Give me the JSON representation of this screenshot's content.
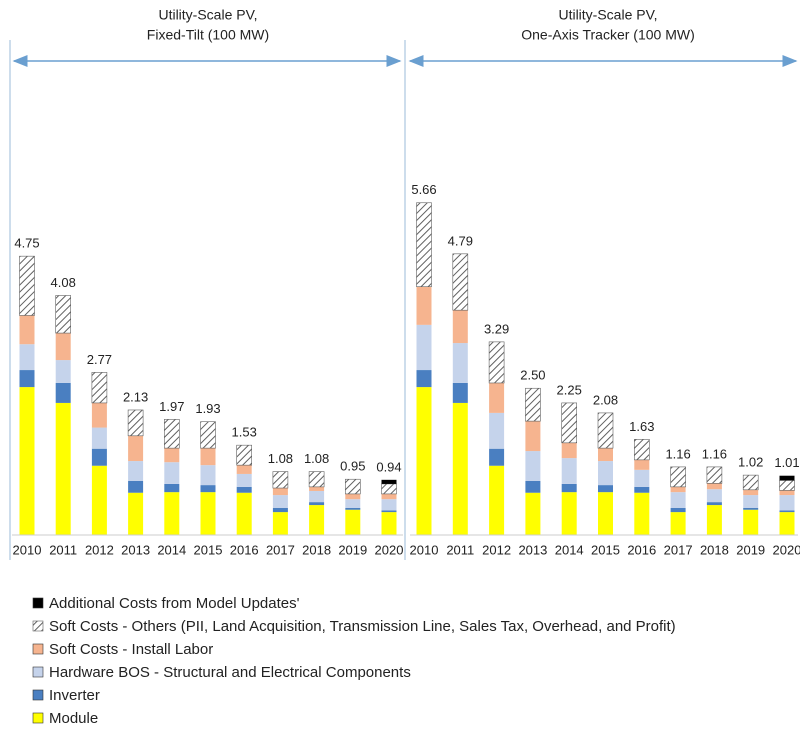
{
  "chart_data": {
    "type": "bar",
    "stacked": true,
    "categories": [
      "2010",
      "2011",
      "2012",
      "2013",
      "2014",
      "2015",
      "2016",
      "2017",
      "2018",
      "2019",
      "2020"
    ],
    "panels": [
      {
        "title": [
          "Utility-Scale PV,",
          "Fixed-Tilt (100 MW)"
        ],
        "totals": [
          4.75,
          4.08,
          2.77,
          2.13,
          1.97,
          1.93,
          1.53,
          1.08,
          1.08,
          0.95,
          0.94
        ],
        "value_labels": [
          "4.75",
          "4.08",
          "2.77",
          "2.13",
          "1.97",
          "1.93",
          "1.53",
          "1.08",
          "1.08",
          "0.95",
          "0.94"
        ]
      },
      {
        "title": [
          "Utility-Scale PV,",
          "One-Axis Tracker (100 MW)"
        ],
        "totals": [
          5.66,
          4.79,
          3.29,
          2.5,
          2.25,
          2.08,
          1.63,
          1.16,
          1.16,
          1.02,
          1.01
        ],
        "value_labels": [
          "5.66",
          "4.79",
          "3.29",
          "2.50",
          "2.25",
          "2.08",
          "1.63",
          "1.16",
          "1.16",
          "1.02",
          "1.01"
        ]
      }
    ],
    "series": [
      {
        "name": "Module",
        "color": "#ffff00",
        "values": [
          [
            2.52,
            2.25,
            1.18,
            0.72,
            0.73,
            0.73,
            0.72,
            0.39,
            0.51,
            0.43,
            0.39
          ],
          [
            2.52,
            2.25,
            1.18,
            0.72,
            0.73,
            0.73,
            0.72,
            0.39,
            0.51,
            0.43,
            0.39
          ]
        ]
      },
      {
        "name": "Inverter",
        "color": "#4a7fc1",
        "values": [
          [
            0.29,
            0.34,
            0.29,
            0.2,
            0.14,
            0.12,
            0.1,
            0.07,
            0.05,
            0.03,
            0.03
          ],
          [
            0.29,
            0.34,
            0.29,
            0.2,
            0.14,
            0.12,
            0.1,
            0.07,
            0.05,
            0.03,
            0.03
          ]
        ]
      },
      {
        "name": "Hardware BOS - Structural and Electrical Components",
        "color": "#c5d3eb",
        "values": [
          [
            0.44,
            0.39,
            0.36,
            0.34,
            0.37,
            0.34,
            0.22,
            0.22,
            0.19,
            0.15,
            0.19
          ],
          [
            0.77,
            0.68,
            0.61,
            0.51,
            0.44,
            0.41,
            0.29,
            0.27,
            0.22,
            0.22,
            0.26
          ]
        ]
      },
      {
        "name": "Soft Costs - Install Labor",
        "color": "#f6b48f",
        "values": [
          [
            0.49,
            0.46,
            0.42,
            0.43,
            0.24,
            0.29,
            0.15,
            0.12,
            0.07,
            0.09,
            0.09
          ],
          [
            0.65,
            0.56,
            0.51,
            0.51,
            0.26,
            0.22,
            0.17,
            0.09,
            0.1,
            0.09,
            0.08
          ]
        ]
      },
      {
        "name": "Soft Costs - Others (PII, Land Acquisition, Transmission Line, Sales Tax, Overhead, and Profit)",
        "color": "#606060",
        "pattern": "hatch",
        "values": [
          [
            1.01,
            0.64,
            0.52,
            0.44,
            0.49,
            0.45,
            0.34,
            0.28,
            0.26,
            0.25,
            0.17
          ],
          [
            1.43,
            0.96,
            0.7,
            0.56,
            0.68,
            0.6,
            0.35,
            0.34,
            0.28,
            0.25,
            0.17
          ]
        ]
      },
      {
        "name": "Additional Costs from Model Updates'",
        "color": "#000000",
        "values": [
          [
            null,
            null,
            null,
            null,
            null,
            null,
            null,
            null,
            null,
            null,
            0.07
          ],
          [
            null,
            null,
            null,
            null,
            null,
            null,
            null,
            null,
            null,
            null,
            0.08
          ]
        ]
      }
    ]
  }
}
